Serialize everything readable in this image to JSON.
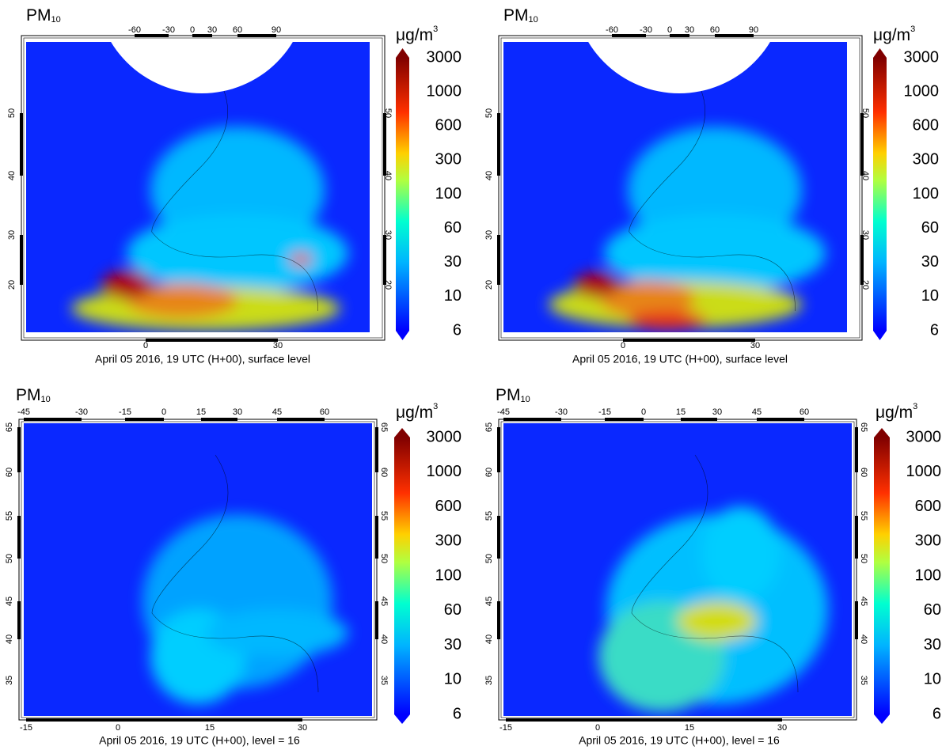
{
  "panels": [
    {
      "title": "PM",
      "title_subscript": "10",
      "unit": "μg/m",
      "unit_superscript": "3",
      "colorbar_labels": [
        3000,
        1000,
        600,
        300,
        100,
        60,
        30,
        10,
        6
      ],
      "top_ticks": [
        -60,
        -30,
        0,
        30,
        60,
        90
      ],
      "left_ticks": [
        50,
        40,
        30,
        20
      ],
      "right_ticks": [
        50,
        40,
        30,
        20
      ],
      "bottom_ticks": [
        0,
        30
      ],
      "caption": "April 05 2016, 19 UTC (H+00), surface level"
    },
    {
      "title": "PM",
      "title_subscript": "10",
      "unit": "μg/m",
      "unit_superscript": "3",
      "colorbar_labels": [
        3000,
        1000,
        600,
        300,
        100,
        60,
        30,
        10,
        6
      ],
      "top_ticks": [
        -60,
        -30,
        0,
        30,
        60,
        90
      ],
      "left_ticks": [
        50,
        40,
        30,
        20
      ],
      "right_ticks": [
        50,
        40,
        30,
        20
      ],
      "bottom_ticks": [
        0,
        30
      ],
      "caption": "April 05 2016, 19 UTC (H+00), surface level"
    },
    {
      "title": "PM",
      "title_subscript": "10",
      "unit": "μg/m",
      "unit_superscript": "3",
      "colorbar_labels": [
        3000,
        1000,
        600,
        300,
        100,
        60,
        30,
        10,
        6
      ],
      "top_ticks": [
        -45,
        -30,
        -15,
        0,
        15,
        30,
        45,
        60
      ],
      "left_ticks": [
        65,
        60,
        55,
        50,
        45,
        40,
        35
      ],
      "right_ticks": [
        65,
        60,
        55,
        50,
        45,
        40,
        35
      ],
      "bottom_ticks": [
        -15,
        0,
        15,
        30
      ],
      "caption": "April 05 2016, 19 UTC (H+00), level = 16"
    },
    {
      "title": "PM",
      "title_subscript": "10",
      "unit": "μg/m",
      "unit_superscript": "3",
      "colorbar_labels": [
        3000,
        1000,
        600,
        300,
        100,
        60,
        30,
        10,
        6
      ],
      "top_ticks": [
        -45,
        -30,
        -15,
        0,
        15,
        30,
        45,
        60
      ],
      "left_ticks": [
        65,
        60,
        55,
        50,
        45,
        40,
        35
      ],
      "right_ticks": [
        65,
        60,
        55,
        50,
        45,
        40,
        35
      ],
      "bottom_ticks": [
        -15,
        0,
        15,
        30
      ],
      "caption": "April 05 2016, 19 UTC (H+00), level = 16"
    }
  ]
}
